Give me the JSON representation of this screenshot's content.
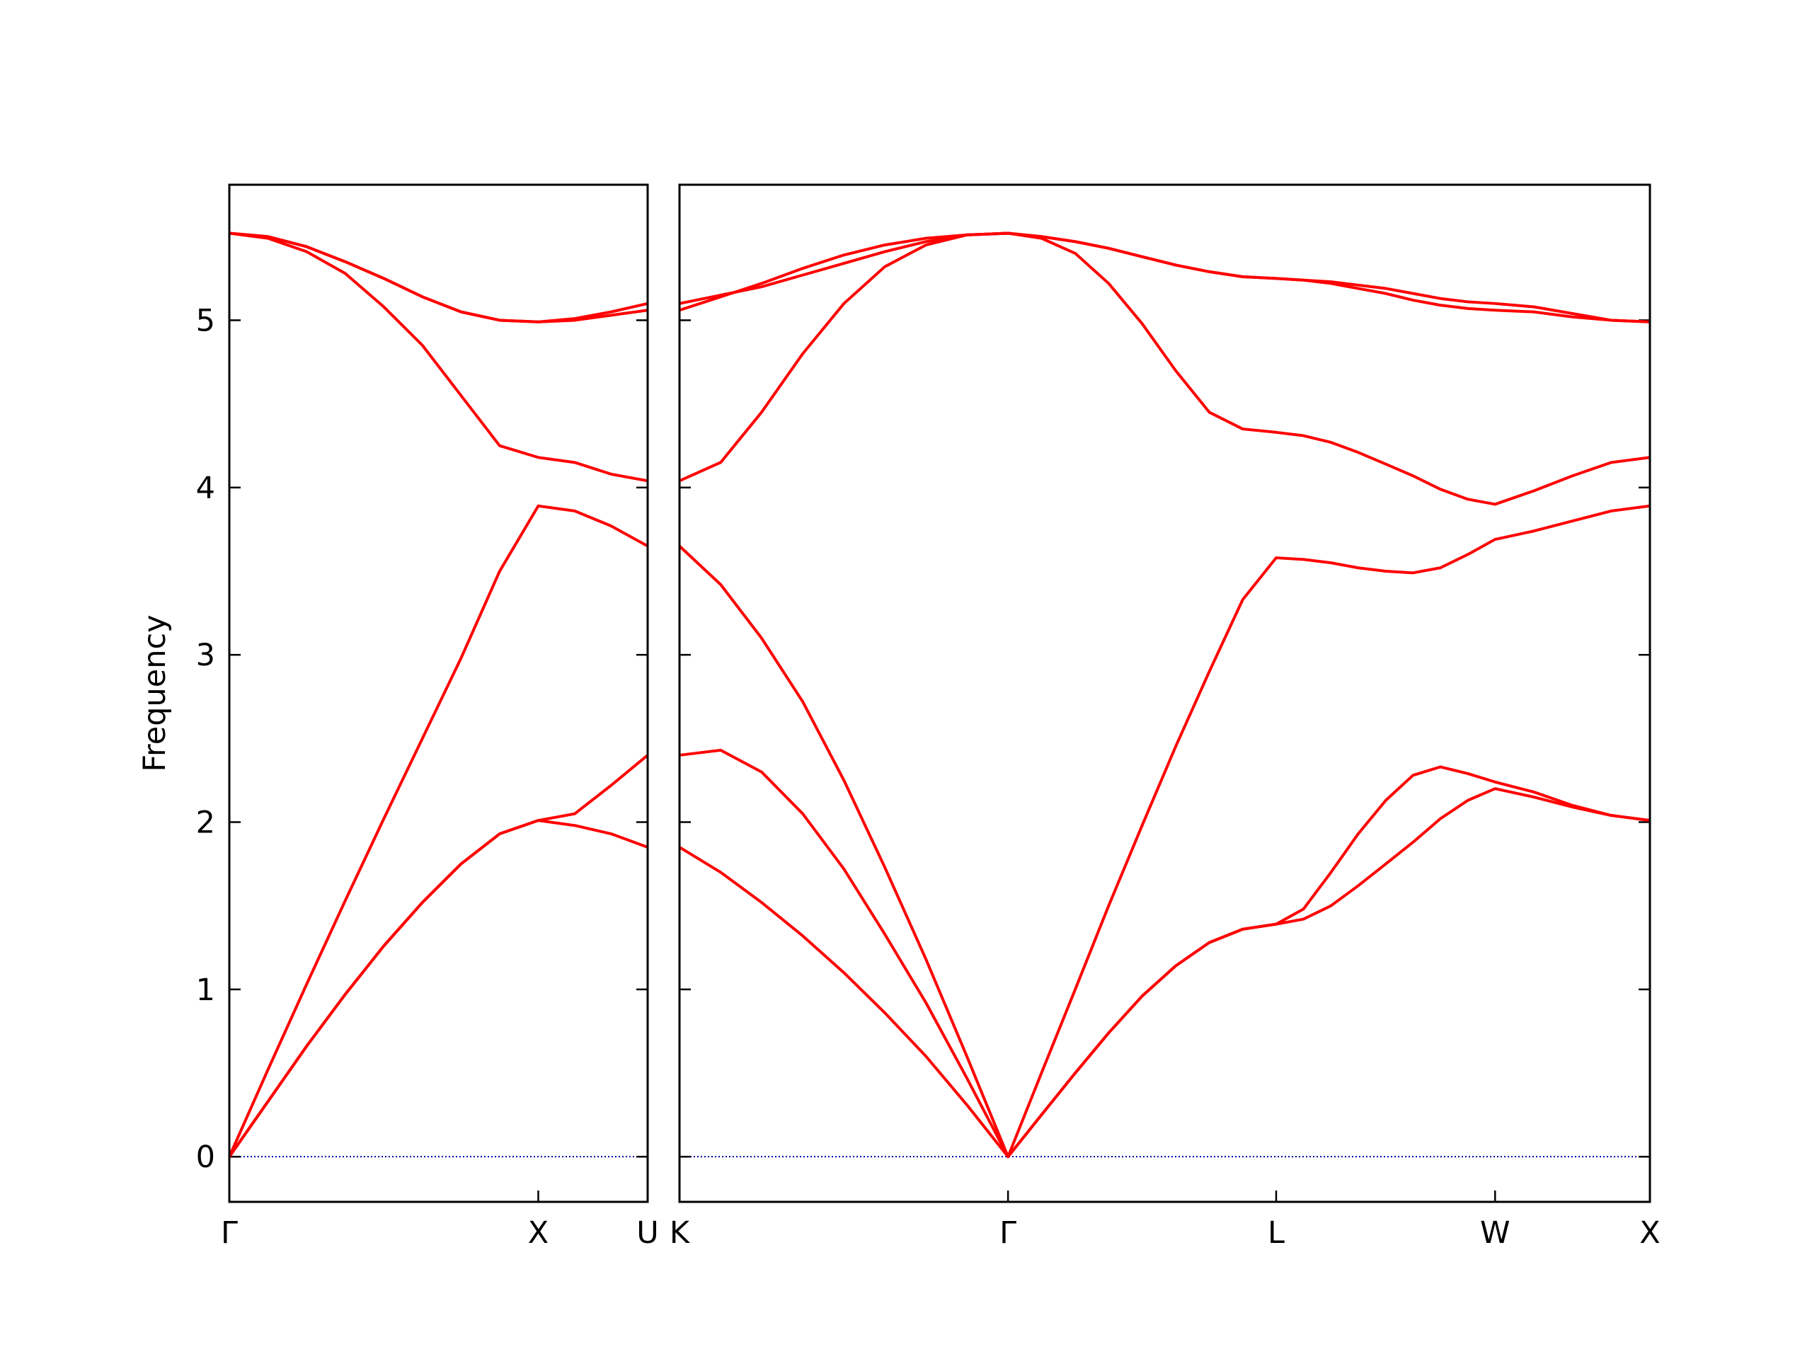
{
  "chart_data": [
    {
      "type": "line",
      "ylabel": "Frequency",
      "xlim": [
        0,
        1.354
      ],
      "ylim": [
        -0.27,
        5.81
      ],
      "xticks": [
        {
          "value": 0,
          "label": "Γ"
        },
        {
          "value": 1,
          "label": "X"
        },
        {
          "value": 1.354,
          "label": "U"
        }
      ],
      "yticks": [
        0,
        1,
        2,
        3,
        4,
        5
      ],
      "show_ylabels": true,
      "hline": 0,
      "hline_color": "#0000aa",
      "x": [
        0,
        0.125,
        0.25,
        0.375,
        0.5,
        0.625,
        0.75,
        0.875,
        1,
        1.118,
        1.236,
        1.354
      ],
      "series": [
        {
          "color": "#ff0000",
          "values": [
            0,
            0.33,
            0.66,
            0.97,
            1.26,
            1.52,
            1.75,
            1.93,
            2.01,
            1.98,
            1.93,
            1.85
          ]
        },
        {
          "color": "#ff0000",
          "values": [
            0,
            0.33,
            0.66,
            0.97,
            1.26,
            1.52,
            1.75,
            1.93,
            2.01,
            2.05,
            2.22,
            2.4
          ]
        },
        {
          "color": "#ff0000",
          "values": [
            0,
            0.52,
            1.03,
            1.53,
            2.02,
            2.5,
            2.98,
            3.5,
            3.89,
            3.86,
            3.77,
            3.65
          ]
        },
        {
          "color": "#ff0000",
          "values": [
            5.52,
            5.49,
            5.41,
            5.28,
            5.08,
            4.85,
            4.55,
            4.25,
            4.18,
            4.15,
            4.08,
            4.04
          ]
        },
        {
          "color": "#ff0000",
          "values": [
            5.52,
            5.5,
            5.44,
            5.35,
            5.25,
            5.14,
            5.05,
            5.0,
            4.99,
            5.0,
            5.03,
            5.06
          ]
        },
        {
          "color": "#ff0000",
          "values": [
            5.52,
            5.5,
            5.44,
            5.35,
            5.25,
            5.14,
            5.05,
            5.0,
            4.99,
            5.01,
            5.05,
            5.1
          ]
        }
      ]
    },
    {
      "type": "line",
      "xlim": [
        1.354,
        4.488
      ],
      "ylim": [
        -0.27,
        5.81
      ],
      "xticks": [
        {
          "value": 1.354,
          "label": "K"
        },
        {
          "value": 2.415,
          "label": "Γ"
        },
        {
          "value": 3.281,
          "label": "L"
        },
        {
          "value": 3.988,
          "label": "W"
        },
        {
          "value": 4.488,
          "label": "X"
        }
      ],
      "yticks": [
        0,
        1,
        2,
        3,
        4,
        5
      ],
      "show_ylabels": false,
      "hline": 0,
      "hline_color": "#0000aa",
      "x": [
        1.354,
        1.487,
        1.619,
        1.752,
        1.885,
        2.017,
        2.15,
        2.282,
        2.415,
        2.523,
        2.632,
        2.74,
        2.848,
        2.956,
        3.065,
        3.173,
        3.281,
        3.369,
        3.458,
        3.546,
        3.635,
        3.723,
        3.811,
        3.9,
        3.988,
        4.113,
        4.238,
        4.363,
        4.488
      ],
      "series": [
        {
          "color": "#ff0000",
          "values": [
            1.85,
            1.7,
            1.52,
            1.32,
            1.1,
            0.86,
            0.6,
            0.31,
            0,
            0.25,
            0.5,
            0.74,
            0.96,
            1.14,
            1.28,
            1.36,
            1.39,
            1.42,
            1.5,
            1.62,
            1.75,
            1.88,
            2.02,
            2.13,
            2.2,
            2.15,
            2.09,
            2.04,
            2.01
          ]
        },
        {
          "color": "#ff0000",
          "values": [
            2.4,
            2.43,
            2.3,
            2.05,
            1.72,
            1.33,
            0.92,
            0.47,
            0,
            0.25,
            0.5,
            0.74,
            0.96,
            1.14,
            1.28,
            1.36,
            1.39,
            1.48,
            1.7,
            1.93,
            2.13,
            2.28,
            2.33,
            2.29,
            2.24,
            2.18,
            2.1,
            2.04,
            2.01
          ]
        },
        {
          "color": "#ff0000",
          "values": [
            3.65,
            3.42,
            3.1,
            2.72,
            2.25,
            1.73,
            1.18,
            0.6,
            0,
            0.5,
            1.0,
            1.5,
            1.98,
            2.45,
            2.9,
            3.33,
            3.58,
            3.57,
            3.55,
            3.52,
            3.5,
            3.49,
            3.52,
            3.6,
            3.69,
            3.74,
            3.8,
            3.86,
            3.89
          ]
        },
        {
          "color": "#ff0000",
          "values": [
            4.04,
            4.15,
            4.45,
            4.8,
            5.1,
            5.32,
            5.45,
            5.51,
            5.52,
            5.49,
            5.4,
            5.22,
            4.98,
            4.7,
            4.45,
            4.35,
            4.33,
            4.31,
            4.27,
            4.21,
            4.14,
            4.07,
            3.99,
            3.93,
            3.9,
            3.98,
            4.07,
            4.15,
            4.18
          ]
        },
        {
          "color": "#ff0000",
          "values": [
            5.06,
            5.14,
            5.22,
            5.31,
            5.39,
            5.45,
            5.49,
            5.51,
            5.52,
            5.5,
            5.47,
            5.43,
            5.38,
            5.33,
            5.29,
            5.26,
            5.25,
            5.24,
            5.22,
            5.19,
            5.16,
            5.12,
            5.09,
            5.07,
            5.06,
            5.05,
            5.02,
            5.0,
            4.99
          ]
        },
        {
          "color": "#ff0000",
          "values": [
            5.1,
            5.15,
            5.2,
            5.27,
            5.34,
            5.41,
            5.47,
            5.51,
            5.52,
            5.5,
            5.47,
            5.43,
            5.38,
            5.33,
            5.29,
            5.26,
            5.25,
            5.24,
            5.23,
            5.21,
            5.19,
            5.16,
            5.13,
            5.11,
            5.1,
            5.08,
            5.04,
            5.0,
            4.99
          ]
        }
      ]
    }
  ]
}
